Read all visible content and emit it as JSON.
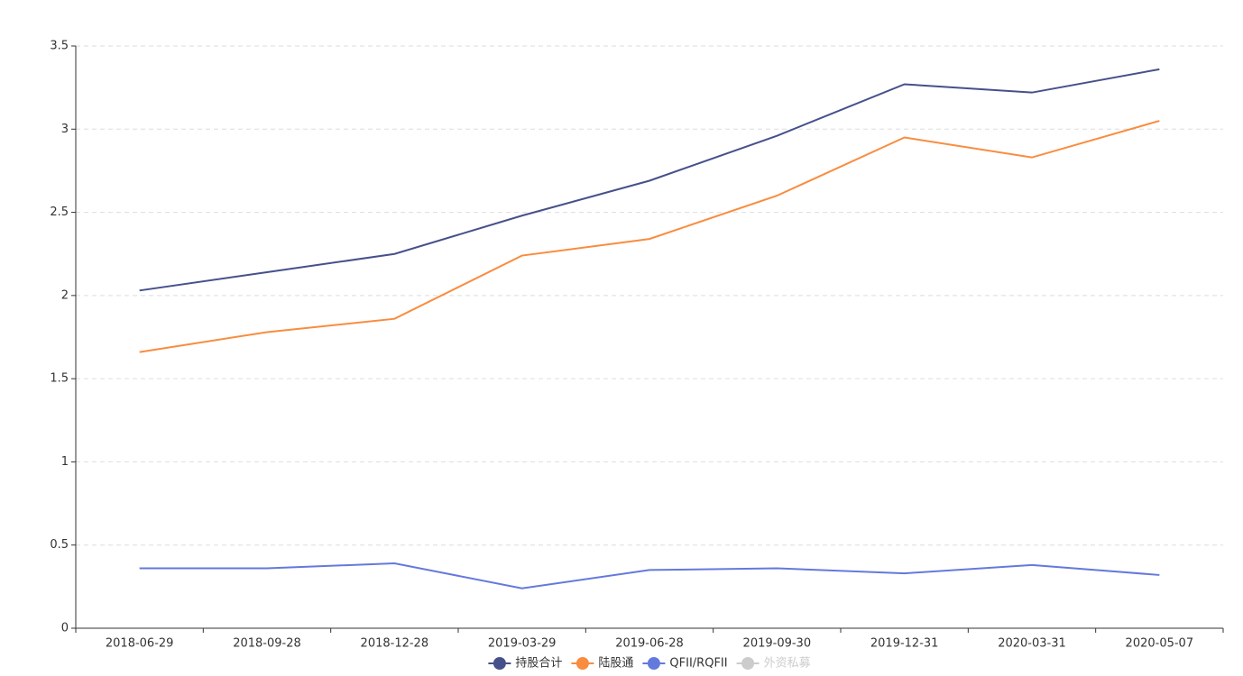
{
  "chart_data": {
    "type": "line",
    "categories": [
      "2018-06-29",
      "2018-09-28",
      "2018-12-28",
      "2019-03-29",
      "2019-06-28",
      "2019-09-30",
      "2019-12-31",
      "2020-03-31",
      "2020-05-07"
    ],
    "series": [
      {
        "name": "持股合计",
        "color": "#46508a",
        "values": [
          2.03,
          2.14,
          2.25,
          2.48,
          2.69,
          2.96,
          3.27,
          3.22,
          3.36
        ]
      },
      {
        "name": "陆股通",
        "color": "#f98c3e",
        "values": [
          1.66,
          1.78,
          1.86,
          2.24,
          2.34,
          2.6,
          2.95,
          2.83,
          3.05
        ]
      },
      {
        "name": "QFII/RQFII",
        "color": "#6479dc",
        "values": [
          0.36,
          0.36,
          0.39,
          0.24,
          0.35,
          0.36,
          0.33,
          0.38,
          0.32
        ]
      },
      {
        "name": "外资私募",
        "color": "#cccccc",
        "selected": false,
        "values": [
          null,
          null,
          null,
          null,
          null,
          null,
          null,
          null,
          null
        ]
      }
    ],
    "ylim": [
      0,
      3.5
    ],
    "yticks": [
      0,
      0.5,
      1,
      1.5,
      2,
      2.5,
      3,
      3.5
    ],
    "grid": true,
    "legend": "bottom"
  }
}
